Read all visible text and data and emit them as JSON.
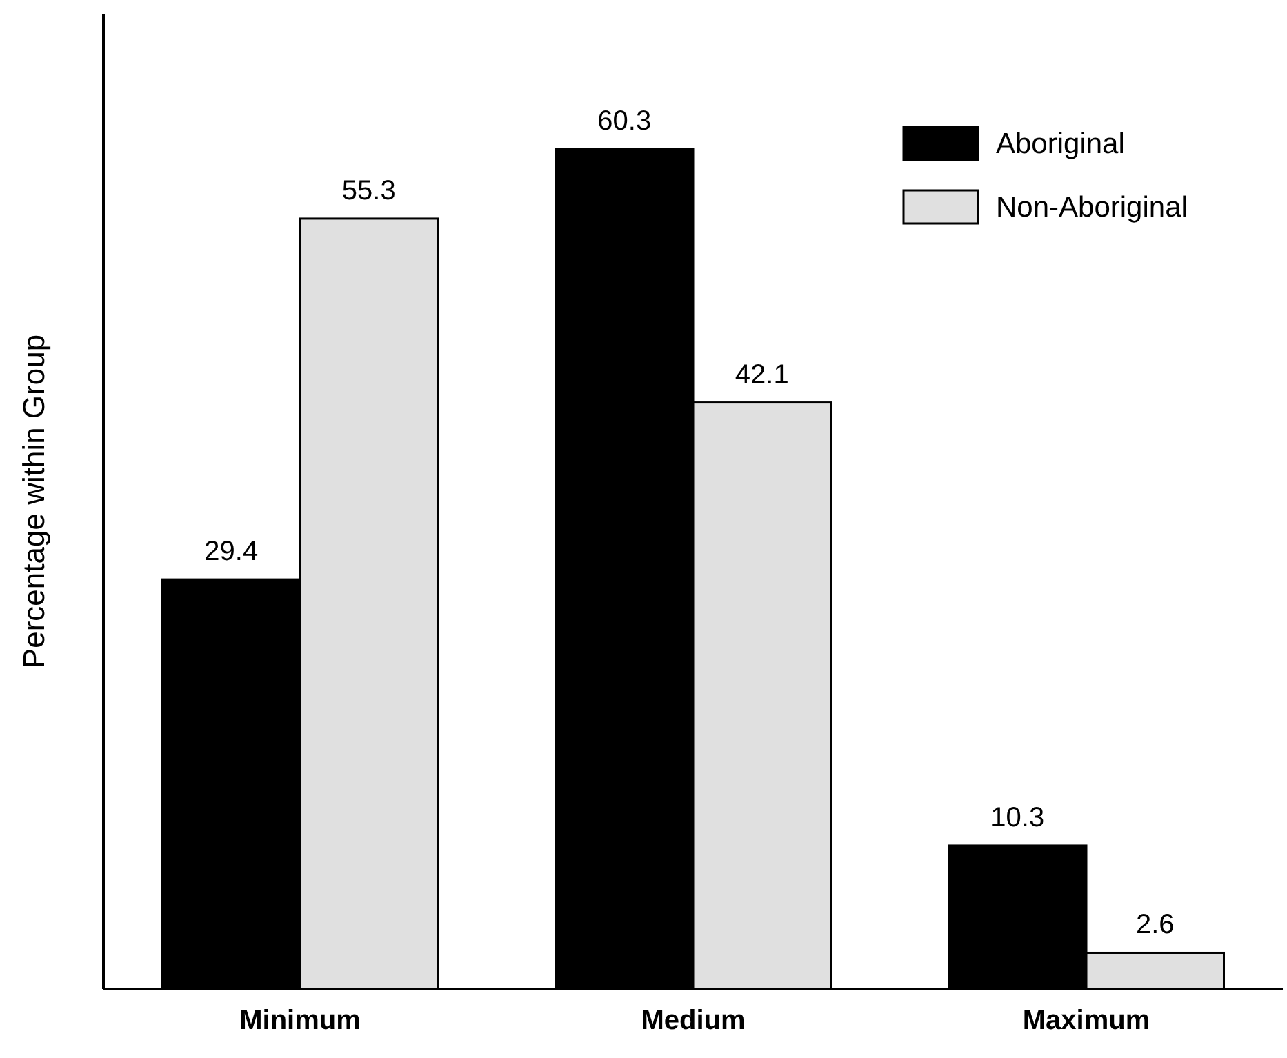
{
  "chart_data": {
    "type": "bar",
    "ylabel": "Percentage within Group",
    "categories": [
      "Minimum",
      "Medium",
      "Maximum"
    ],
    "series": [
      {
        "name": "Aboriginal",
        "color": "#000000",
        "values": [
          29.4,
          60.3,
          10.3
        ]
      },
      {
        "name": "Non-Aboriginal",
        "color": "#e0e0e0",
        "values": [
          55.3,
          42.1,
          2.6
        ]
      }
    ],
    "ylim": [
      0,
      70
    ],
    "data_labels": true,
    "legend": "top right"
  }
}
